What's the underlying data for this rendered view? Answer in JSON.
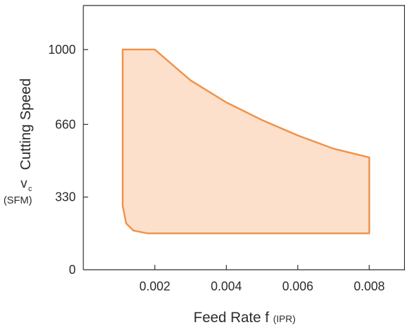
{
  "chart_data": {
    "type": "area",
    "title": "",
    "xlabel": "Feed Rate f",
    "xlabel_unit": "(IPR)",
    "ylabel": "Cutting Speed",
    "ylabel_symbol": "v",
    "ylabel_subscript": "c",
    "ylabel_unit": "(SFM)",
    "xlim": [
      0.0,
      0.009
    ],
    "ylim": [
      0,
      1200
    ],
    "xticks": [
      0.002,
      0.004,
      0.006,
      0.008
    ],
    "xtick_labels": [
      "0.002",
      "0.004",
      "0.006",
      "0.008"
    ],
    "yticks": [
      0,
      330,
      660,
      1000
    ],
    "ytick_labels": [
      "0",
      "330",
      "660",
      "1000"
    ],
    "grid": false,
    "colors": {
      "fill": "#fde0cb",
      "stroke": "#f0924a",
      "axis": "#2b2b2b"
    },
    "series": [
      {
        "x": [
          0.0011,
          0.0011,
          0.0012,
          0.0014,
          0.0018,
          0.003,
          0.005,
          0.007,
          0.008,
          0.008,
          0.007,
          0.006,
          0.005,
          0.004,
          0.003,
          0.0025,
          0.002,
          0.0011
        ],
        "y": [
          1000,
          290,
          210,
          178,
          165,
          165,
          165,
          165,
          165,
          510,
          550,
          610,
          680,
          760,
          860,
          930,
          1000,
          1000
        ]
      }
    ]
  }
}
